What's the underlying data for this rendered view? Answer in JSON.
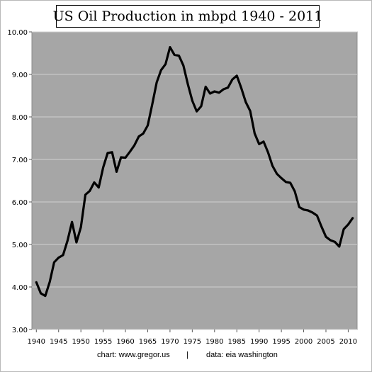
{
  "chart_data": {
    "type": "line",
    "title": "US Oil Production in mbpd 1940 - 2011",
    "xlabel": "",
    "ylabel": "",
    "xlim": [
      1939,
      2012
    ],
    "ylim": [
      3.0,
      10.0
    ],
    "y_ticks": [
      "3.00",
      "4.00",
      "5.00",
      "6.00",
      "7.00",
      "8.00",
      "9.00",
      "10.00"
    ],
    "x_ticks": [
      "1940",
      "1945",
      "1950",
      "1955",
      "1960",
      "1965",
      "1970",
      "1975",
      "1980",
      "1985",
      "1990",
      "1995",
      "2000",
      "2005",
      "2010"
    ],
    "grid": true,
    "plot_background": "#a6a6a6",
    "grid_color": "#d0d0d0",
    "line_color": "#000000",
    "series": [
      {
        "x": [
          1940,
          1941,
          1942,
          1943,
          1944,
          1945,
          1946,
          1947,
          1948,
          1949,
          1950,
          1951,
          1952,
          1953,
          1954,
          1955,
          1956,
          1957,
          1958,
          1959,
          1960,
          1961,
          1962,
          1963,
          1964,
          1965,
          1966,
          1967,
          1968,
          1969,
          1970,
          1971,
          1972,
          1973,
          1974,
          1975,
          1976,
          1977,
          1978,
          1979,
          1980,
          1981,
          1982,
          1983,
          1984,
          1985,
          1986,
          1987,
          1988,
          1989,
          1990,
          1991,
          1992,
          1993,
          1994,
          1995,
          1996,
          1997,
          1998,
          1999,
          2000,
          2001,
          2002,
          2003,
          2004,
          2005,
          2006,
          2007,
          2008,
          2009,
          2010,
          2011
        ],
        "values": [
          4.11,
          3.85,
          3.79,
          4.12,
          4.58,
          4.69,
          4.75,
          5.09,
          5.53,
          5.05,
          5.41,
          6.17,
          6.26,
          6.46,
          6.34,
          6.81,
          7.15,
          7.17,
          6.71,
          7.05,
          7.04,
          7.18,
          7.33,
          7.54,
          7.61,
          7.8,
          8.29,
          8.81,
          9.1,
          9.24,
          9.64,
          9.46,
          9.44,
          9.21,
          8.77,
          8.38,
          8.13,
          8.25,
          8.71,
          8.55,
          8.6,
          8.57,
          8.65,
          8.69,
          8.88,
          8.97,
          8.68,
          8.35,
          8.14,
          7.61,
          7.36,
          7.42,
          7.17,
          6.85,
          6.66,
          6.56,
          6.47,
          6.45,
          6.25,
          5.88,
          5.82,
          5.8,
          5.75,
          5.68,
          5.42,
          5.18,
          5.1,
          5.06,
          4.95,
          5.36,
          5.47,
          5.62
        ]
      }
    ]
  },
  "footer": {
    "source": "chart: www.gregor.us",
    "separator": "|",
    "data": "data: eia washington"
  }
}
